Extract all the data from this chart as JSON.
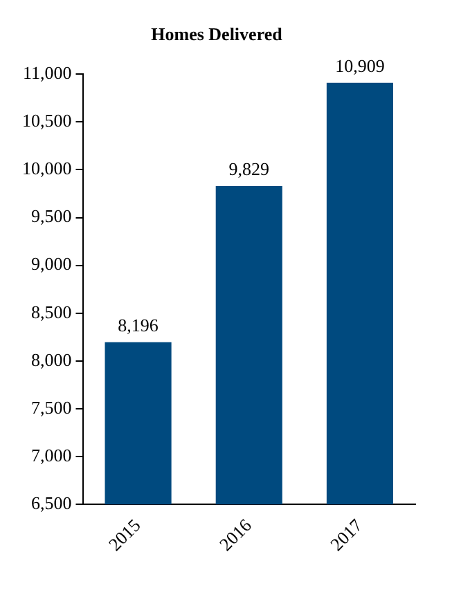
{
  "chart_data": {
    "type": "bar",
    "title": "Homes Delivered",
    "categories": [
      "2015",
      "2016",
      "2017"
    ],
    "values": [
      8196,
      9829,
      10909
    ],
    "color": "#004a7f",
    "data_labels": true,
    "value_labels": [
      "8,196",
      "9,829",
      "10,909"
    ],
    "ylim": [
      6500,
      11000
    ],
    "yticks": [
      {
        "value": 6500,
        "label": "6,500"
      },
      {
        "value": 7000,
        "label": "7,000"
      },
      {
        "value": 7500,
        "label": "7,500"
      },
      {
        "value": 8000,
        "label": "8,000"
      },
      {
        "value": 8500,
        "label": "8,500"
      },
      {
        "value": 9000,
        "label": "9,000"
      },
      {
        "value": 9500,
        "label": "9,500"
      },
      {
        "value": 10000,
        "label": "10,000"
      },
      {
        "value": 10500,
        "label": "10,500"
      },
      {
        "value": 11000,
        "label": "11,000"
      }
    ],
    "grid": false,
    "legend": false
  }
}
